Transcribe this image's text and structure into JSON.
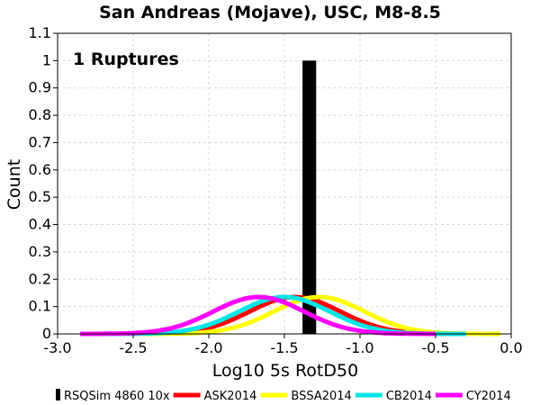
{
  "chart_data": {
    "type": "bar",
    "title": "San Andreas (Mojave), USC, M8-8.5",
    "xlabel": "Log10 5s RotD50",
    "ylabel": "Count",
    "annotation": "1 Ruptures",
    "xlim": [
      -3.0,
      0.0
    ],
    "ylim": [
      0,
      1.1
    ],
    "xticks": [
      "-3.0",
      "-2.5",
      "-2.0",
      "-1.5",
      "-1.0",
      "-0.5",
      "0.0"
    ],
    "yticks": [
      "0",
      "0.1",
      "0.2",
      "0.3",
      "0.4",
      "0.5",
      "0.6",
      "0.7",
      "0.8",
      "0.9",
      "1",
      "1.1"
    ],
    "grid": true,
    "legend_position": "bottom",
    "histogram": {
      "name": "RSQSim 4860 10x",
      "color": "#000000",
      "bins": [
        {
          "x0": -1.38,
          "x1": -1.29,
          "count": 1
        }
      ]
    },
    "series": [
      {
        "name": "ASK2014",
        "color": "#ff0000",
        "type": "line",
        "mean": -1.43,
        "sigma": 0.3,
        "x_range": [
          -2.85,
          -0.3
        ]
      },
      {
        "name": "BSSA2014",
        "color": "#ffff00",
        "type": "line",
        "mean": -1.27,
        "sigma": 0.3,
        "x_range": [
          -2.85,
          -0.07
        ]
      },
      {
        "name": "CB2014",
        "color": "#00e5e5",
        "type": "line",
        "mean": -1.5,
        "sigma": 0.3,
        "x_range": [
          -2.85,
          -0.3
        ]
      },
      {
        "name": "CY2014",
        "color": "#ff00ff",
        "type": "line",
        "mean": -1.67,
        "sigma": 0.3,
        "x_range": [
          -2.85,
          -0.5
        ]
      }
    ]
  }
}
